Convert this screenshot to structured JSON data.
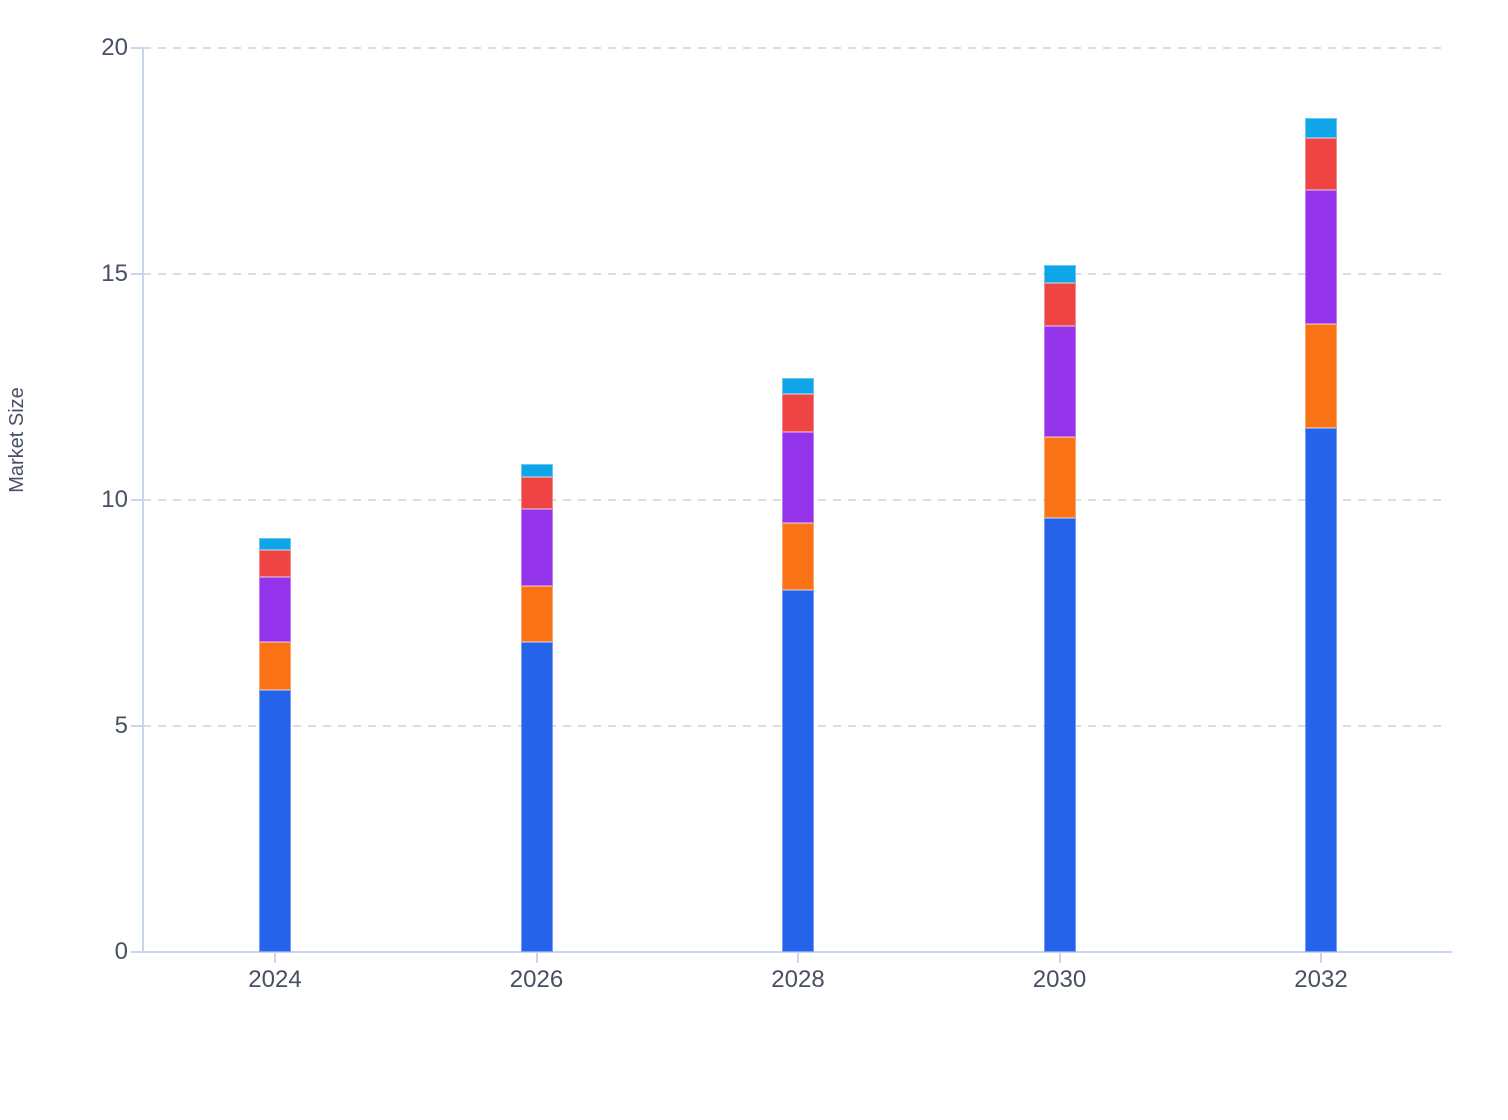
{
  "chart_data": {
    "type": "bar",
    "stacked": true,
    "title": "",
    "xlabel": "",
    "ylabel": "Market Size",
    "categories": [
      "2024",
      "2026",
      "2028",
      "2030",
      "2032"
    ],
    "series": [
      {
        "name": "segment-blue",
        "color": "#2563eb",
        "values": [
          5.8,
          6.85,
          8.0,
          9.6,
          11.6
        ]
      },
      {
        "name": "segment-orange",
        "color": "#f97316",
        "values": [
          1.05,
          1.25,
          1.5,
          1.8,
          2.3
        ]
      },
      {
        "name": "segment-purple",
        "color": "#9333ea",
        "values": [
          1.45,
          1.7,
          2.0,
          2.45,
          2.95
        ]
      },
      {
        "name": "segment-red",
        "color": "#ef4444",
        "values": [
          0.6,
          0.7,
          0.85,
          0.95,
          1.15
        ]
      },
      {
        "name": "segment-cyan",
        "color": "#0ea5e9",
        "values": [
          0.25,
          0.3,
          0.35,
          0.4,
          0.45
        ]
      }
    ],
    "totals": [
      9.15,
      10.8,
      12.7,
      15.2,
      18.45
    ],
    "ylim": [
      0,
      20
    ],
    "yticks": [
      0,
      5,
      10,
      15,
      20
    ],
    "grid": "horizontal-dashed",
    "legend": "none"
  },
  "style": {
    "axis_line_color": "#c9d4f0",
    "grid_line_color": "#dbdde2",
    "tick_text_color": "#475063",
    "background": "#ffffff"
  }
}
